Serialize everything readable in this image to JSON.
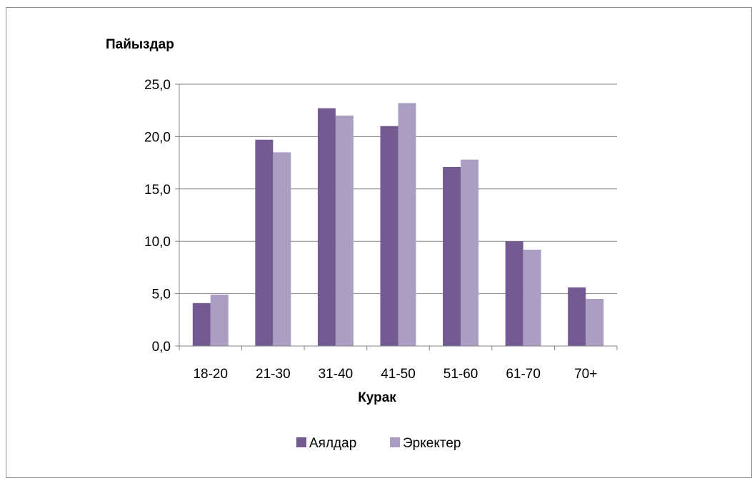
{
  "chart_data": {
    "type": "bar",
    "title": "",
    "ylabel": "Пайыздар",
    "xlabel": "Курак",
    "categories": [
      "18-20",
      "21-30",
      "31-40",
      "41-50",
      "51-60",
      "61-70",
      "70+"
    ],
    "series": [
      {
        "name": "Аялдар",
        "color": "#735b91",
        "values": [
          4.1,
          19.7,
          22.7,
          21.0,
          17.1,
          10.0,
          5.6
        ]
      },
      {
        "name": "Эркектер",
        "color": "#aa9ec3",
        "values": [
          4.9,
          18.5,
          22.0,
          23.2,
          17.8,
          9.2,
          4.5
        ]
      }
    ],
    "ylim": [
      0,
      25
    ],
    "yticks": [
      "0,0",
      "5,0",
      "10,0",
      "15,0",
      "20,0",
      "25,0"
    ],
    "grid": true,
    "legend": "bottom"
  }
}
